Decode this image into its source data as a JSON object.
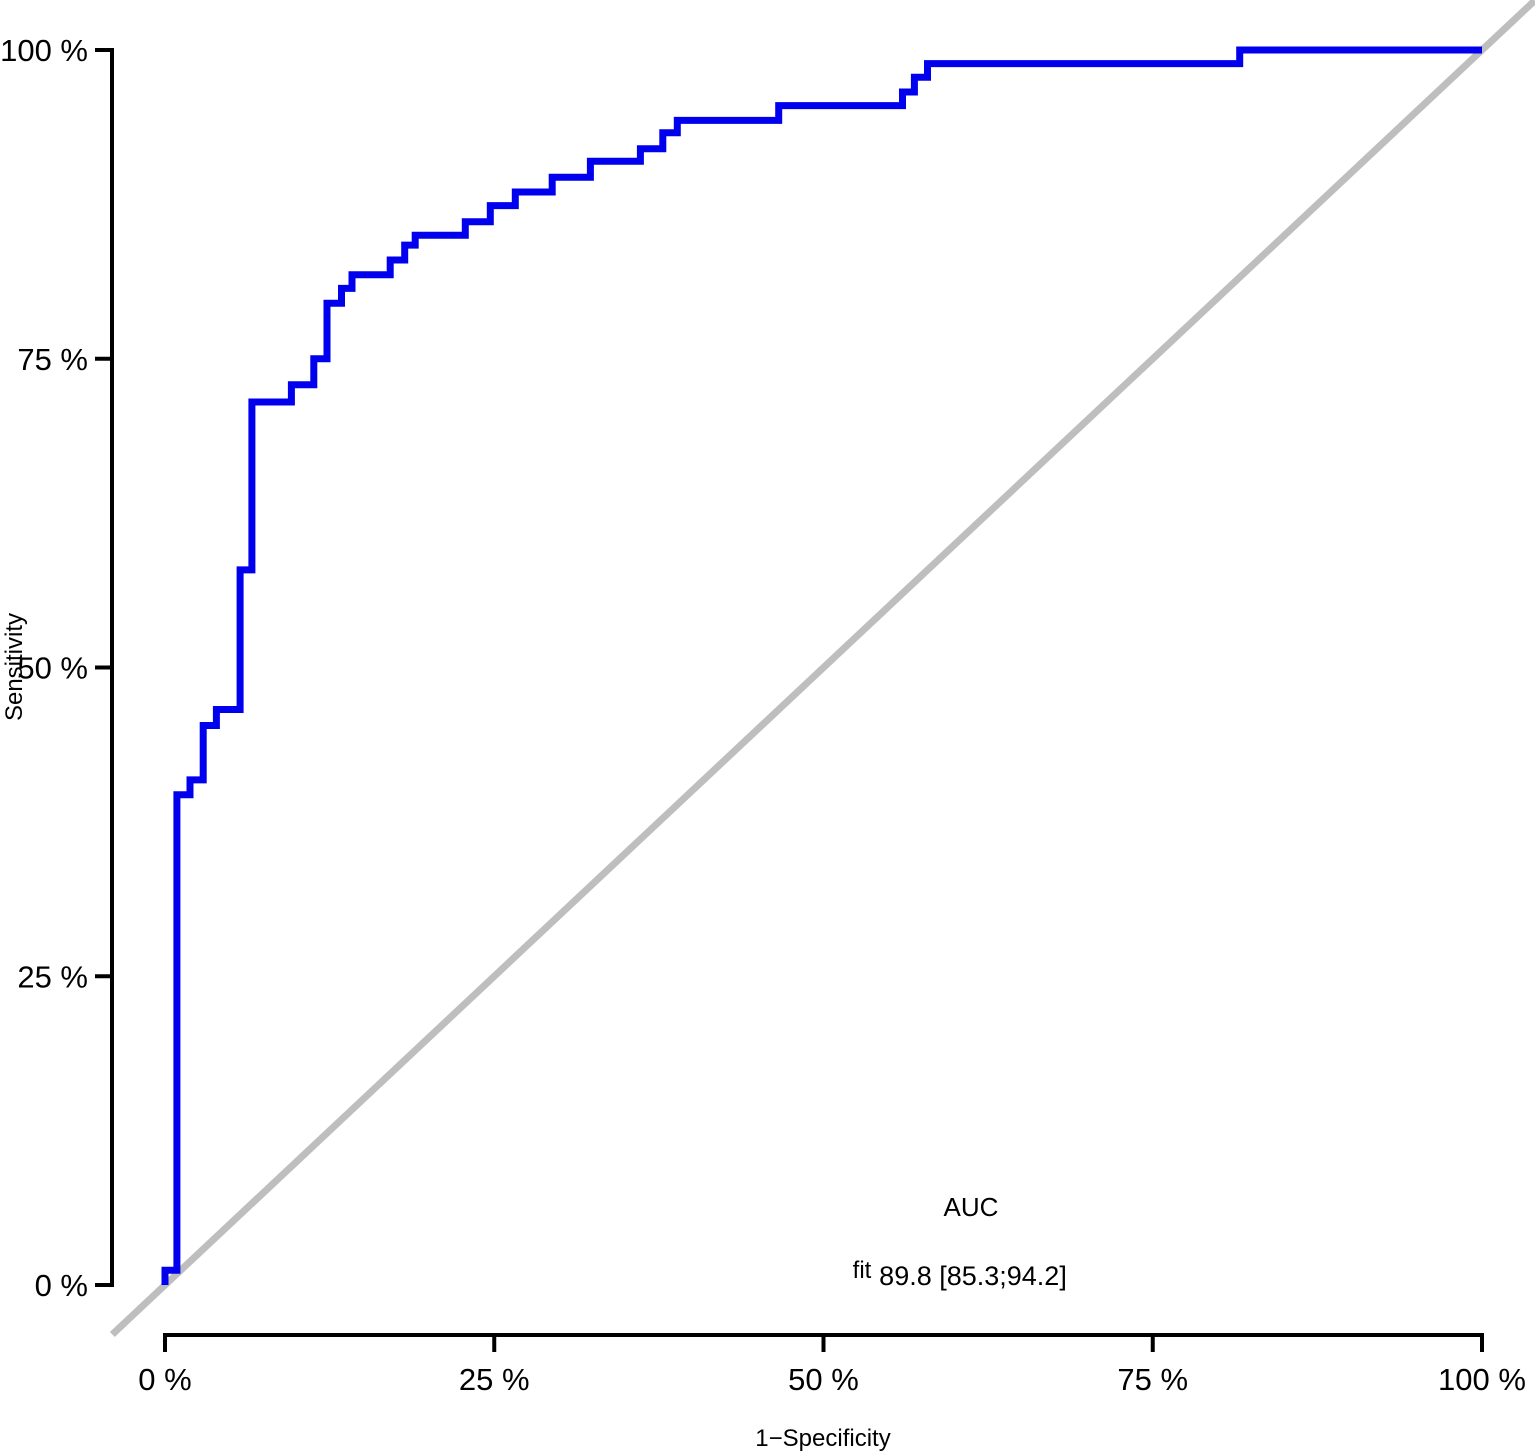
{
  "chart_data": {
    "type": "line",
    "subtype": "roc-step-curve",
    "title": "",
    "xlabel": "1−Specificity",
    "ylabel": "Sensitivity",
    "xlim": [
      0,
      100
    ],
    "ylim": [
      0,
      100
    ],
    "grid": false,
    "x_tick_values": [
      0,
      25,
      50,
      75,
      100
    ],
    "x_tick_labels": [
      "0 %",
      "25 %",
      "50 %",
      "75 %",
      "100 %"
    ],
    "y_tick_values": [
      0,
      25,
      50,
      75,
      100
    ],
    "y_tick_labels": [
      "0 %",
      "25 %",
      "50 %",
      "75 %",
      "100 %"
    ],
    "series": [
      {
        "name": "fit",
        "type": "step",
        "color": "#0000EE",
        "points": [
          [
            0,
            0
          ],
          [
            0,
            1.2
          ],
          [
            0.9,
            1.2
          ],
          [
            0.9,
            39.7
          ],
          [
            1.9,
            39.7
          ],
          [
            1.9,
            40.9
          ],
          [
            2.9,
            40.9
          ],
          [
            2.9,
            45.3
          ],
          [
            3.9,
            45.3
          ],
          [
            3.9,
            46.6
          ],
          [
            5.7,
            46.6
          ],
          [
            5.7,
            57.9
          ],
          [
            6.6,
            57.9
          ],
          [
            6.6,
            71.5
          ],
          [
            9.6,
            71.5
          ],
          [
            9.6,
            72.9
          ],
          [
            11.3,
            72.9
          ],
          [
            11.3,
            75.0
          ],
          [
            12.3,
            75.0
          ],
          [
            12.3,
            79.5
          ],
          [
            13.4,
            79.5
          ],
          [
            13.4,
            80.7
          ],
          [
            14.2,
            80.7
          ],
          [
            14.2,
            81.8
          ],
          [
            17.1,
            81.8
          ],
          [
            17.1,
            83.0
          ],
          [
            18.2,
            83.0
          ],
          [
            18.2,
            84.2
          ],
          [
            19.0,
            84.2
          ],
          [
            19.0,
            85.0
          ],
          [
            22.8,
            85.0
          ],
          [
            22.8,
            86.1
          ],
          [
            24.7,
            86.1
          ],
          [
            24.7,
            87.4
          ],
          [
            26.6,
            87.4
          ],
          [
            26.6,
            88.5
          ],
          [
            29.4,
            88.5
          ],
          [
            29.4,
            89.7
          ],
          [
            32.3,
            89.7
          ],
          [
            32.3,
            91.0
          ],
          [
            36.1,
            91.0
          ],
          [
            36.1,
            92.0
          ],
          [
            37.8,
            92.0
          ],
          [
            37.8,
            93.3
          ],
          [
            38.9,
            93.3
          ],
          [
            38.9,
            94.3
          ],
          [
            46.6,
            94.3
          ],
          [
            46.6,
            95.5
          ],
          [
            56.0,
            95.5
          ],
          [
            56.0,
            96.6
          ],
          [
            56.9,
            96.6
          ],
          [
            56.9,
            97.8
          ],
          [
            57.9,
            97.8
          ],
          [
            57.9,
            98.9
          ],
          [
            81.6,
            98.9
          ],
          [
            81.6,
            100
          ],
          [
            100,
            100
          ]
        ]
      },
      {
        "name": "chance",
        "type": "diagonal",
        "color": "#BEBEBE",
        "points": [
          [
            0,
            0
          ],
          [
            100,
            100
          ]
        ]
      }
    ],
    "legend": {
      "position": "bottom-right-inside",
      "title": "AUC",
      "entries": [
        {
          "label": "fit",
          "value": "89.8 [85.3;94.2]"
        }
      ]
    },
    "auc": {
      "estimate": 89.8,
      "ci_low": 85.3,
      "ci_high": 94.2
    }
  },
  "colors": {
    "background": "#FFFFFF",
    "axis": "#000000",
    "roc_curve": "#0000EE",
    "chance_line": "#BEBEBE"
  }
}
